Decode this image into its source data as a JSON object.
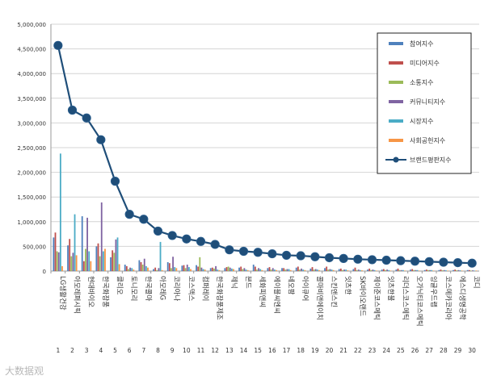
{
  "watermark": "大数据观",
  "chart_data": {
    "type": "bar",
    "ylim": [
      0,
      5000000
    ],
    "y_ticks": [
      "0",
      "500,000",
      "1,000,000",
      "1,500,000",
      "2,000,000",
      "2,500,000",
      "3,000,000",
      "3,500,000",
      "4,000,000",
      "4,500,000",
      "5,000,000"
    ],
    "grid": true,
    "legend_position": "top-right",
    "categories": [
      "LG생활건강",
      "아모레퍼시픽",
      "현대바이오",
      "한국화장품",
      "클리오",
      "토니모리",
      "한국콜마",
      "아모레G",
      "코리아나",
      "코스맥스",
      "컴퍼레이",
      "한국화장품제조",
      "제닉",
      "본드",
      "세화피앤씨",
      "에이블씨엔씨",
      "네오팜",
      "아이큐어",
      "콜마비앤에이치",
      "스킨앤스킨",
      "잇츠한",
      "SK바이오랜드",
      "제이준코스메틱",
      "잇츠한불",
      "리더스코스메틱",
      "오가닉티코스메틱",
      "잉글우드랩",
      "코스메카코리아",
      "에스디생명공학",
      "코디"
    ],
    "x_numbers": [
      "1",
      "2",
      "3",
      "4",
      "5",
      "6",
      "7",
      "8",
      "9",
      "10",
      "11",
      "12",
      "13",
      "14",
      "15",
      "16",
      "17",
      "18",
      "19",
      "20",
      "21",
      "22",
      "23",
      "24",
      "25",
      "26",
      "27",
      "28",
      "29",
      "30"
    ],
    "series": [
      {
        "name": "참여지수",
        "type": "bar",
        "color": "#4f81bd",
        "values": [
          680000,
          520000,
          1110000,
          500000,
          280000,
          130000,
          220000,
          40000,
          180000,
          110000,
          120000,
          60000,
          60000,
          70000,
          130000,
          60000,
          60000,
          70000,
          50000,
          60000,
          40000,
          40000,
          30000,
          30000,
          30000,
          30000,
          20000,
          20000,
          20000,
          20000
        ]
      },
      {
        "name": "미디어지수",
        "type": "bar",
        "color": "#c0504d",
        "values": [
          780000,
          650000,
          200000,
          560000,
          420000,
          100000,
          180000,
          70000,
          160000,
          120000,
          90000,
          70000,
          80000,
          90000,
          90000,
          80000,
          60000,
          90000,
          80000,
          90000,
          50000,
          70000,
          50000,
          40000,
          50000,
          40000,
          30000,
          30000,
          30000,
          20000
        ]
      },
      {
        "name": "소통지수",
        "type": "bar",
        "color": "#9bbb59",
        "values": [
          400000,
          300000,
          450000,
          300000,
          370000,
          40000,
          130000,
          20000,
          60000,
          60000,
          280000,
          50000,
          90000,
          40000,
          30000,
          30000,
          30000,
          30000,
          30000,
          30000,
          20000,
          20000,
          20000,
          20000,
          20000,
          20000,
          20000,
          15000,
          15000,
          10000
        ]
      },
      {
        "name": "커뮤니티지수",
        "type": "bar",
        "color": "#8064a2",
        "values": [
          380000,
          370000,
          1080000,
          1390000,
          640000,
          70000,
          250000,
          60000,
          290000,
          130000,
          70000,
          100000,
          70000,
          60000,
          60000,
          60000,
          40000,
          50000,
          40000,
          40000,
          30000,
          30000,
          30000,
          30000,
          20000,
          20000,
          20000,
          20000,
          20000,
          15000
        ]
      },
      {
        "name": "시장지수",
        "type": "bar",
        "color": "#4bacc6",
        "values": [
          2380000,
          1150000,
          400000,
          400000,
          680000,
          60000,
          100000,
          590000,
          80000,
          80000,
          40000,
          30000,
          50000,
          30000,
          40000,
          30000,
          40000,
          30000,
          30000,
          30000,
          30000,
          20000,
          20000,
          20000,
          20000,
          20000,
          20000,
          15000,
          15000,
          10000
        ]
      },
      {
        "name": "사회공헌지수",
        "type": "bar",
        "color": "#f79646",
        "values": [
          100000,
          320000,
          200000,
          450000,
          140000,
          30000,
          70000,
          20000,
          60000,
          40000,
          30000,
          20000,
          40000,
          20000,
          20000,
          20000,
          20000,
          20000,
          20000,
          20000,
          15000,
          15000,
          10000,
          10000,
          10000,
          10000,
          10000,
          10000,
          10000,
          10000
        ]
      },
      {
        "name": "브랜드평판지수",
        "type": "line",
        "color": "#1f4e79",
        "values": [
          4570000,
          3260000,
          3100000,
          2660000,
          1820000,
          1150000,
          1050000,
          810000,
          720000,
          650000,
          600000,
          540000,
          430000,
          400000,
          380000,
          350000,
          320000,
          310000,
          290000,
          270000,
          255000,
          240000,
          230000,
          220000,
          210000,
          200000,
          190000,
          180000,
          170000,
          160000
        ]
      }
    ]
  }
}
